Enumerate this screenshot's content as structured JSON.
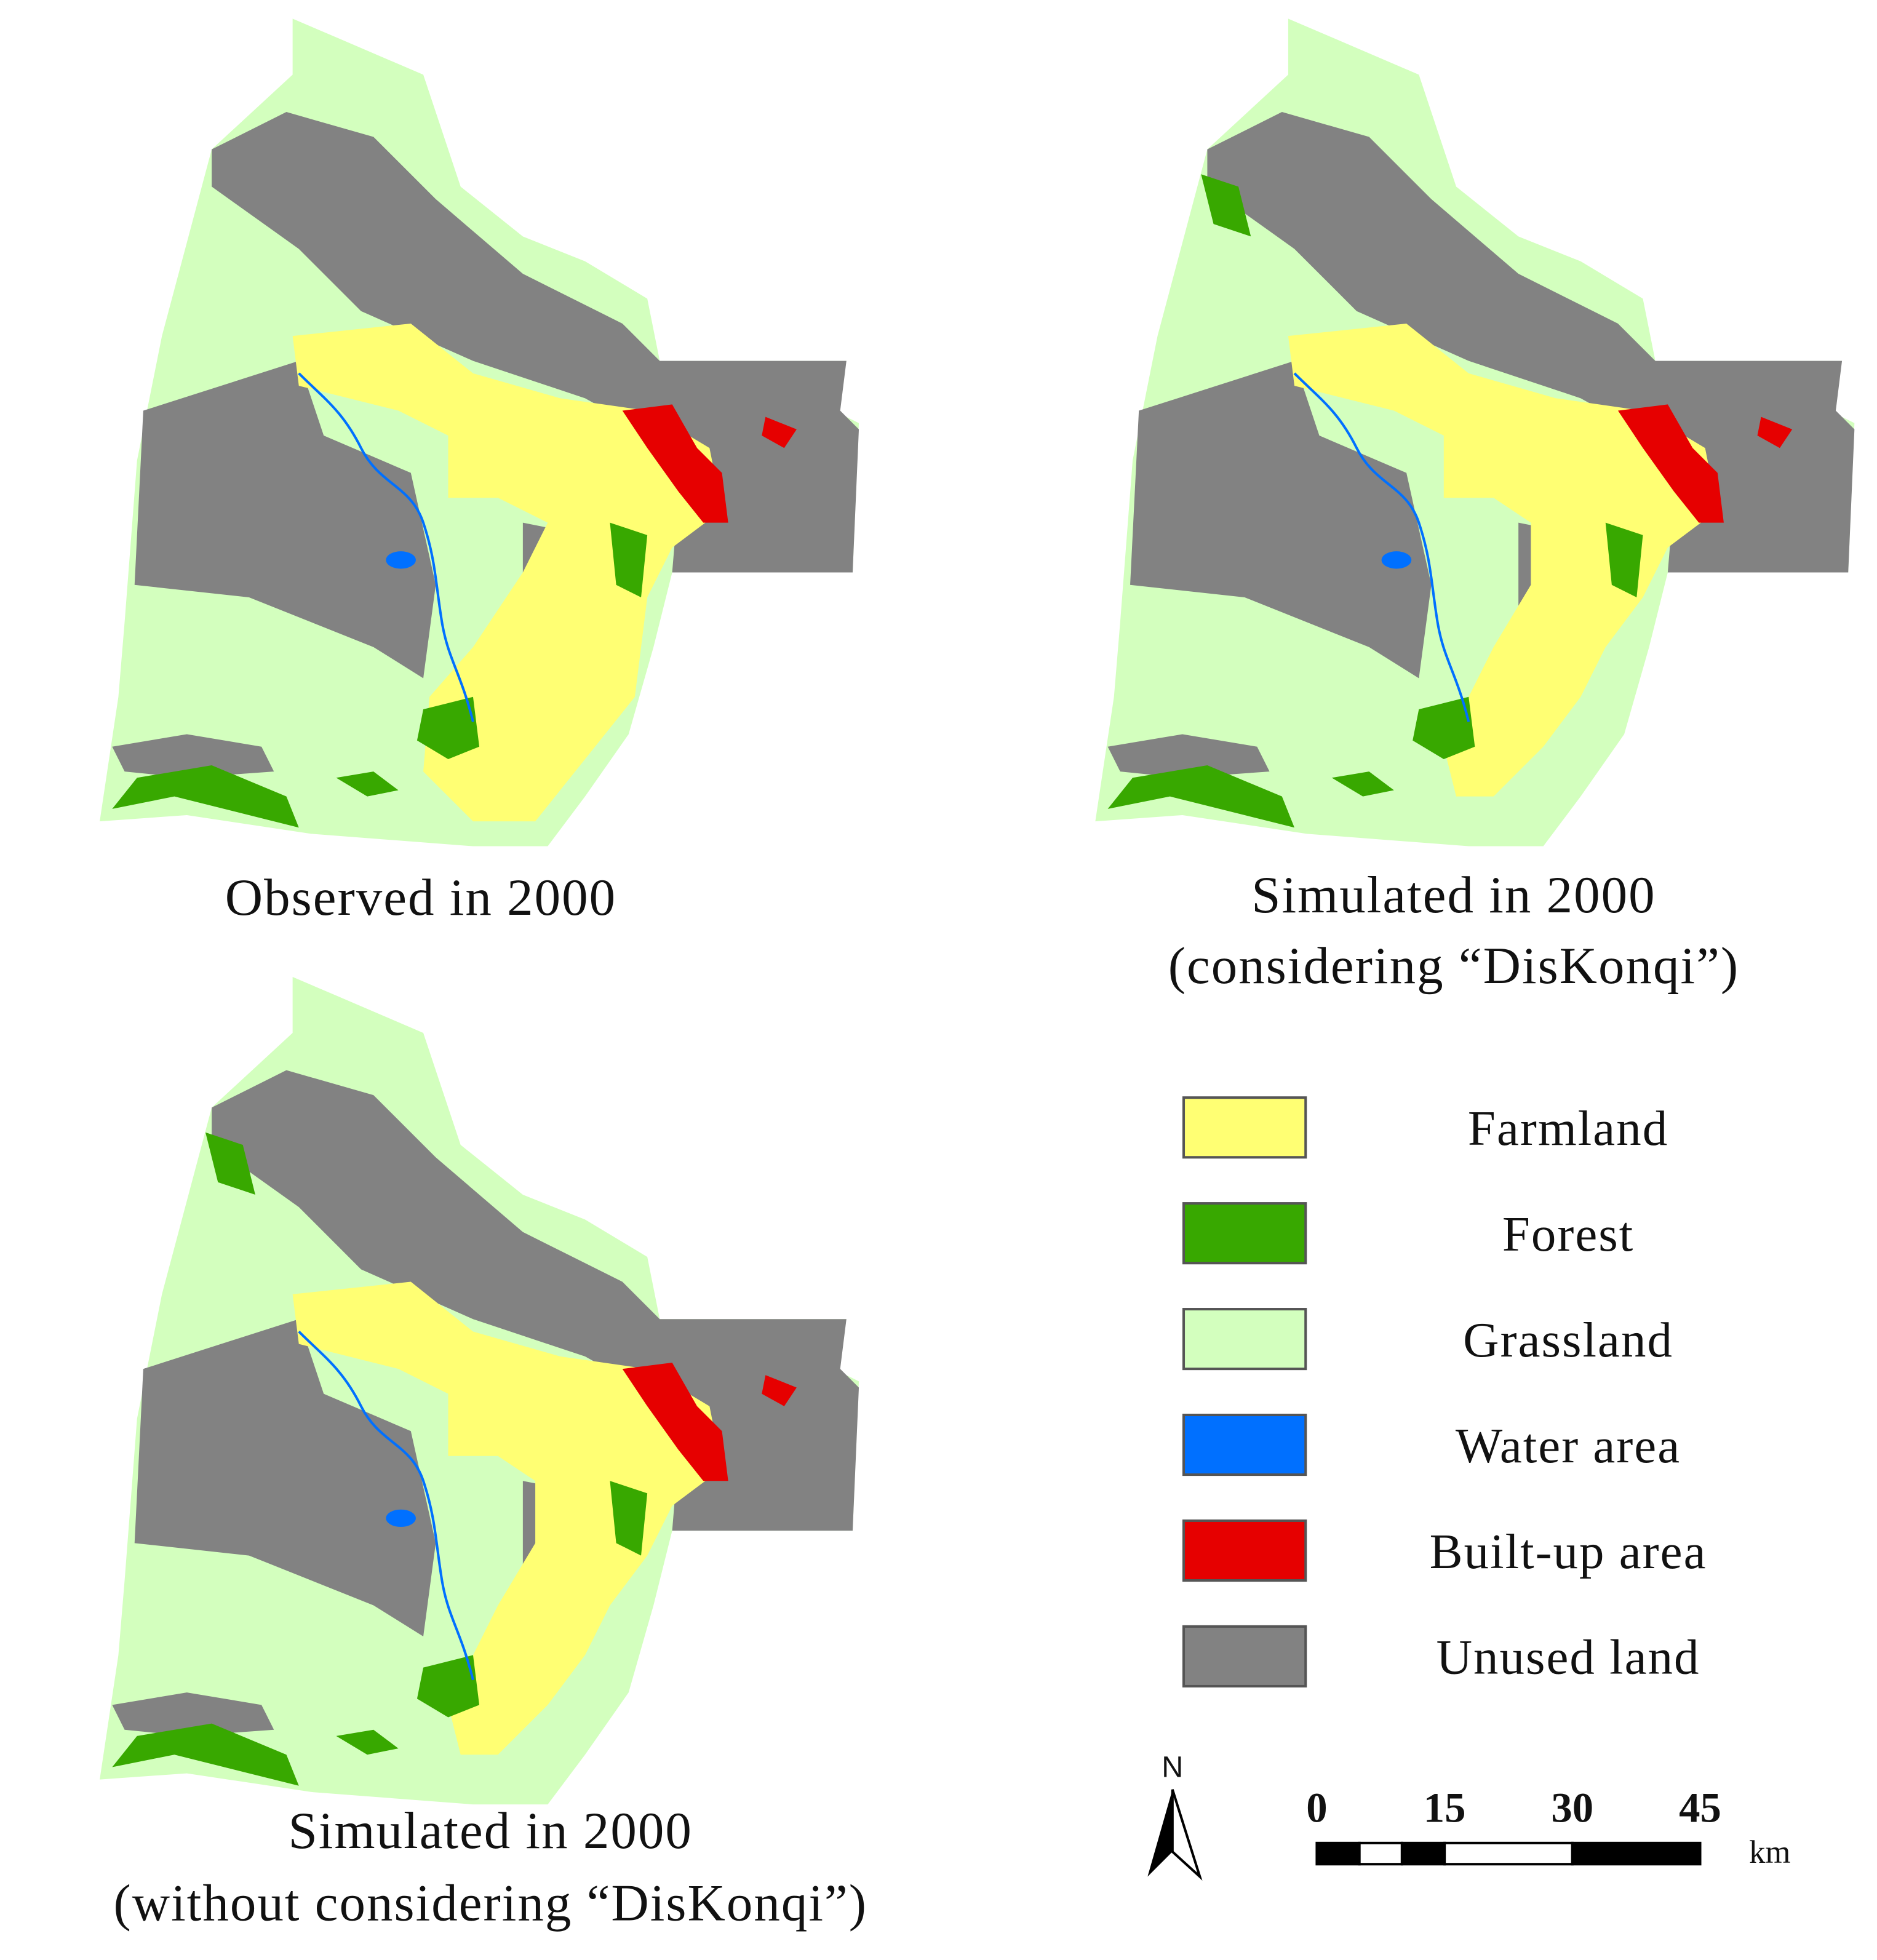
{
  "panels": [
    {
      "caption": [
        "Observed in 2000"
      ]
    },
    {
      "caption": [
        "Simulated in 2000",
        "(considering “DisKonqi”)"
      ]
    },
    {
      "caption": [
        "Simulated in 2000",
        "(without considering “DisKonqi”)"
      ]
    }
  ],
  "legend": [
    {
      "label": "Farmland",
      "color": "#ffff73"
    },
    {
      "label": "Forest",
      "color": "#38a800"
    },
    {
      "label": "Grassland",
      "color": "#d3ffbe"
    },
    {
      "label": "Water area",
      "color": "#0070ff"
    },
    {
      "label": "Built-up area",
      "color": "#e60000"
    },
    {
      "label": "Unused land",
      "color": "#828282"
    }
  ],
  "north_arrow": {
    "label": "N"
  },
  "scale_bar": {
    "ticks": [
      0,
      15,
      30,
      45
    ],
    "unit": "km"
  }
}
